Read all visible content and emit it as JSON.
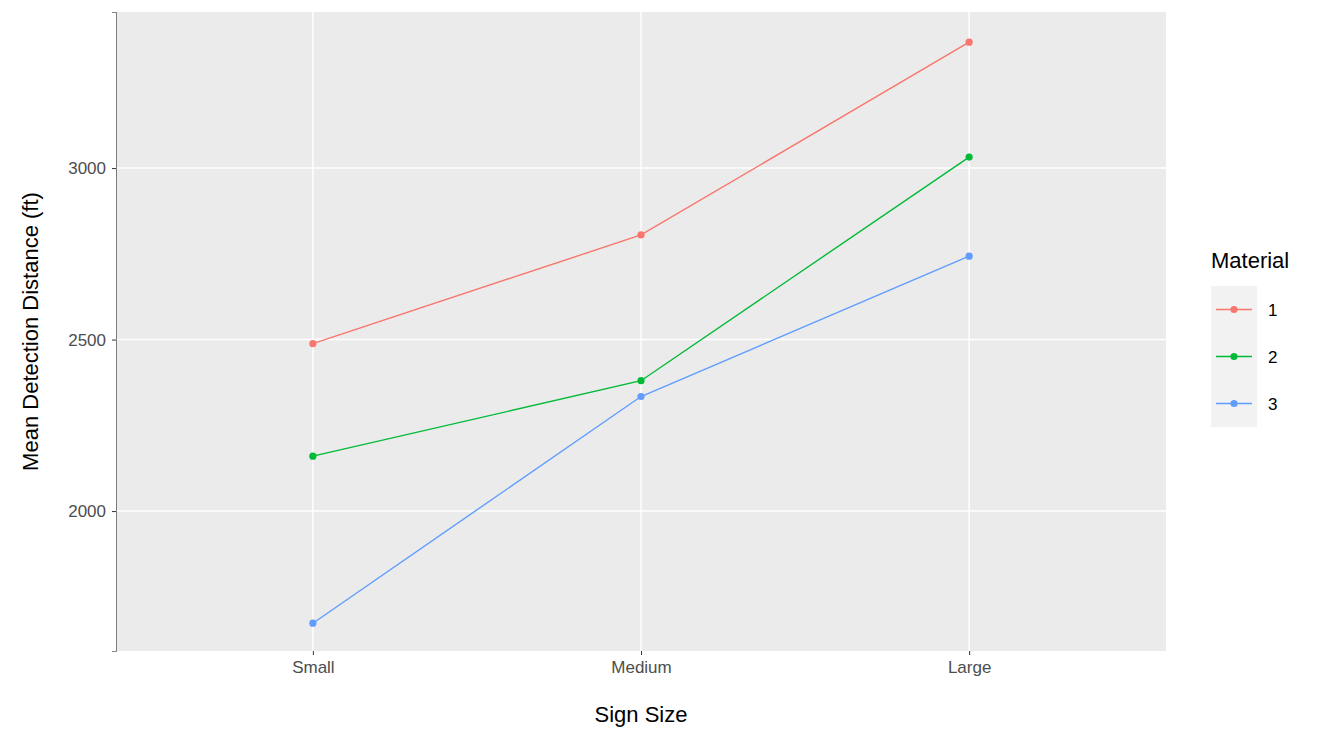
{
  "chart_data": {
    "type": "line",
    "x_label": "Sign Size",
    "y_label": "Mean Detection Distance (ft)",
    "categories": [
      "Small",
      "Medium",
      "Large"
    ],
    "series": [
      {
        "name": "1",
        "color": "#F8766D",
        "values": [
          2488,
          2805,
          3367
        ],
        "marker": "circle"
      },
      {
        "name": "2",
        "color": "#00BA38",
        "values": [
          2160,
          2380,
          3032
        ],
        "marker": "circle"
      },
      {
        "name": "3",
        "color": "#619CFF",
        "values": [
          1673,
          2334,
          2743
        ],
        "marker": "circle"
      }
    ],
    "legend_title": "Material",
    "legend": "right",
    "ylim": [
      1592,
      3455
    ],
    "yticks": [
      2000,
      2500,
      3000
    ],
    "grid": true
  }
}
